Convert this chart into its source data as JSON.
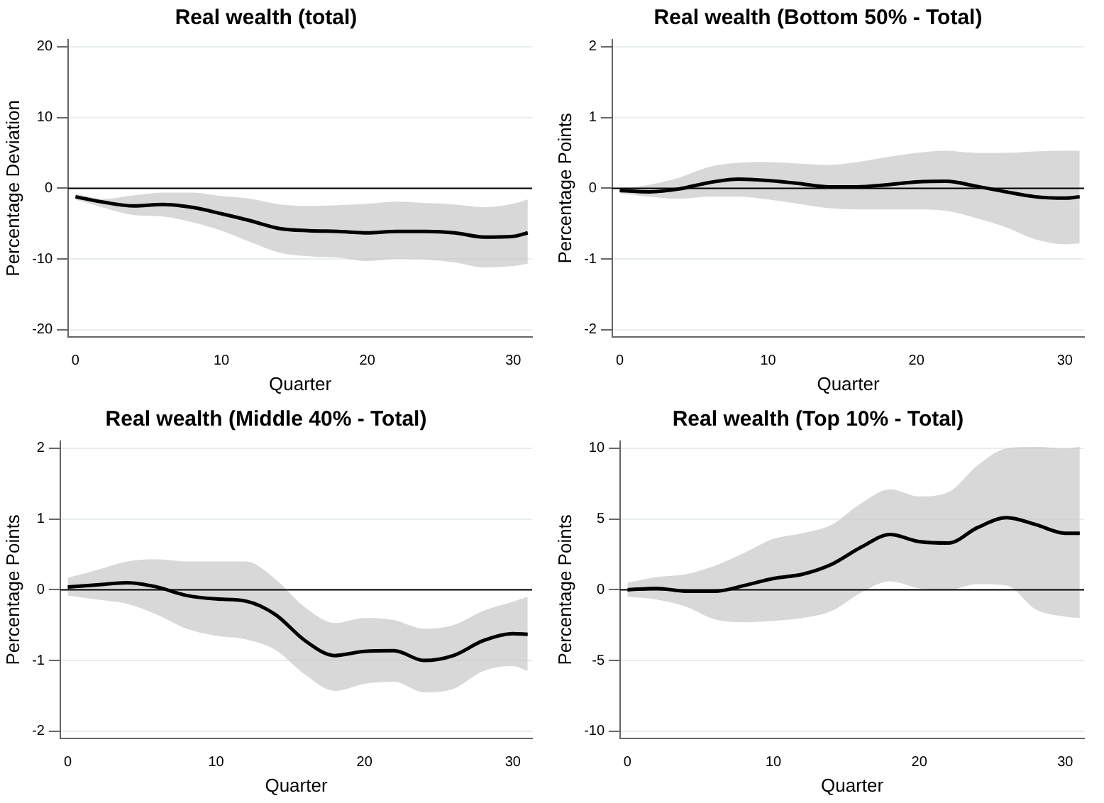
{
  "chart_data": [
    {
      "type": "line",
      "title": "Real wealth (total)",
      "xlabel": "Quarter",
      "ylabel": "Percentage Deviation",
      "x": [
        0,
        2,
        4,
        6,
        8,
        10,
        12,
        14,
        16,
        18,
        20,
        22,
        24,
        26,
        28,
        30,
        31
      ],
      "xlim": [
        -0.5,
        31.3
      ],
      "xticks": [
        0,
        10,
        20,
        30
      ],
      "ylim": [
        -21,
        21
      ],
      "yticks": [
        -20,
        -10,
        0,
        10,
        20
      ],
      "grid": "y",
      "legend": false,
      "ref_lines": [
        {
          "axis": "y",
          "value": 0
        }
      ],
      "series": [
        {
          "color": "#000000",
          "values": [
            -1.2,
            -2.0,
            -2.5,
            -2.3,
            -2.7,
            -3.6,
            -4.6,
            -5.7,
            -6.0,
            -6.1,
            -6.3,
            -6.1,
            -6.1,
            -6.3,
            -6.9,
            -6.8,
            -6.3
          ],
          "lower": [
            -1.6,
            -2.8,
            -3.8,
            -4.0,
            -4.8,
            -6.0,
            -7.6,
            -9.1,
            -9.6,
            -9.8,
            -10.3,
            -10.0,
            -10.1,
            -10.5,
            -11.2,
            -11.0,
            -10.7
          ],
          "upper": [
            -0.8,
            -1.5,
            -1.0,
            -0.6,
            -0.6,
            -1.1,
            -1.5,
            -2.3,
            -2.5,
            -2.4,
            -2.2,
            -1.9,
            -2.1,
            -2.3,
            -2.7,
            -2.2,
            -1.6
          ]
        }
      ]
    },
    {
      "type": "line",
      "title": "Real wealth (Bottom 50% - Total)",
      "xlabel": "Quarter",
      "ylabel": "Percentage Points",
      "x": [
        0,
        2,
        4,
        6,
        8,
        10,
        12,
        14,
        16,
        18,
        20,
        22,
        24,
        26,
        28,
        30,
        31
      ],
      "xlim": [
        -0.5,
        31.3
      ],
      "xticks": [
        0,
        10,
        20,
        30
      ],
      "ylim": [
        -2.1,
        2.1
      ],
      "yticks": [
        -2,
        -1,
        0,
        1,
        2
      ],
      "grid": "y",
      "legend": false,
      "ref_lines": [
        {
          "axis": "y",
          "value": 0
        }
      ],
      "series": [
        {
          "color": "#000000",
          "values": [
            -0.03,
            -0.05,
            -0.01,
            0.08,
            0.13,
            0.11,
            0.07,
            0.02,
            0.02,
            0.05,
            0.09,
            0.1,
            0.03,
            -0.05,
            -0.12,
            -0.14,
            -0.12
          ],
          "lower": [
            -0.07,
            -0.12,
            -0.15,
            -0.12,
            -0.12,
            -0.16,
            -0.22,
            -0.28,
            -0.3,
            -0.3,
            -0.3,
            -0.32,
            -0.42,
            -0.55,
            -0.72,
            -0.79,
            -0.78
          ],
          "upper": [
            -0.01,
            0.05,
            0.15,
            0.3,
            0.36,
            0.37,
            0.35,
            0.33,
            0.37,
            0.44,
            0.5,
            0.53,
            0.5,
            0.5,
            0.52,
            0.53,
            0.53
          ]
        }
      ]
    },
    {
      "type": "line",
      "title": "Real wealth (Middle 40% - Total)",
      "xlabel": "Quarter",
      "ylabel": "Percentage Points",
      "x": [
        0,
        2,
        4,
        6,
        8,
        10,
        12,
        14,
        16,
        18,
        20,
        22,
        24,
        26,
        28,
        30,
        31
      ],
      "xlim": [
        -0.5,
        31.3
      ],
      "xticks": [
        0,
        10,
        20,
        30
      ],
      "ylim": [
        -2.1,
        2.1
      ],
      "yticks": [
        -2,
        -1,
        0,
        1,
        2
      ],
      "grid": "y",
      "legend": false,
      "ref_lines": [
        {
          "axis": "y",
          "value": 0
        }
      ],
      "series": [
        {
          "color": "#000000",
          "values": [
            0.04,
            0.07,
            0.1,
            0.04,
            -0.08,
            -0.13,
            -0.16,
            -0.35,
            -0.72,
            -0.93,
            -0.87,
            -0.86,
            -1.0,
            -0.93,
            -0.72,
            -0.62,
            -0.63
          ],
          "lower": [
            -0.08,
            -0.14,
            -0.2,
            -0.35,
            -0.55,
            -0.65,
            -0.7,
            -0.85,
            -1.2,
            -1.43,
            -1.33,
            -1.3,
            -1.45,
            -1.4,
            -1.15,
            -1.08,
            -1.15
          ],
          "upper": [
            0.17,
            0.28,
            0.4,
            0.43,
            0.4,
            0.4,
            0.4,
            0.15,
            -0.25,
            -0.47,
            -0.4,
            -0.43,
            -0.55,
            -0.5,
            -0.3,
            -0.17,
            -0.1
          ]
        }
      ]
    },
    {
      "type": "line",
      "title": "Real wealth (Top 10% - Total)",
      "xlabel": "Quarter",
      "ylabel": "Percentage Points",
      "x": [
        0,
        2,
        4,
        6,
        8,
        10,
        12,
        14,
        16,
        18,
        20,
        22,
        24,
        26,
        28,
        30,
        31
      ],
      "xlim": [
        -0.5,
        31.3
      ],
      "xticks": [
        0,
        10,
        20,
        30
      ],
      "ylim": [
        -10.5,
        10.5
      ],
      "yticks": [
        -10,
        -5,
        0,
        5,
        10
      ],
      "grid": "y",
      "legend": false,
      "ref_lines": [
        {
          "axis": "y",
          "value": 0
        }
      ],
      "series": [
        {
          "color": "#000000",
          "values": [
            0.0,
            0.1,
            -0.1,
            -0.1,
            0.3,
            0.8,
            1.1,
            1.8,
            3.0,
            3.9,
            3.4,
            3.3,
            4.4,
            5.1,
            4.6,
            4.0,
            4.0
          ],
          "lower": [
            -0.5,
            -0.7,
            -1.2,
            -2.1,
            -2.3,
            -2.2,
            -2.0,
            -1.5,
            -0.2,
            0.6,
            0.1,
            0.0,
            0.4,
            0.3,
            -1.4,
            -1.9,
            -2.0
          ],
          "upper": [
            0.5,
            0.9,
            1.1,
            1.7,
            2.6,
            3.6,
            4.0,
            4.6,
            6.1,
            7.1,
            6.6,
            6.9,
            8.8,
            10.0,
            10.1,
            10.0,
            10.1
          ]
        }
      ]
    }
  ]
}
